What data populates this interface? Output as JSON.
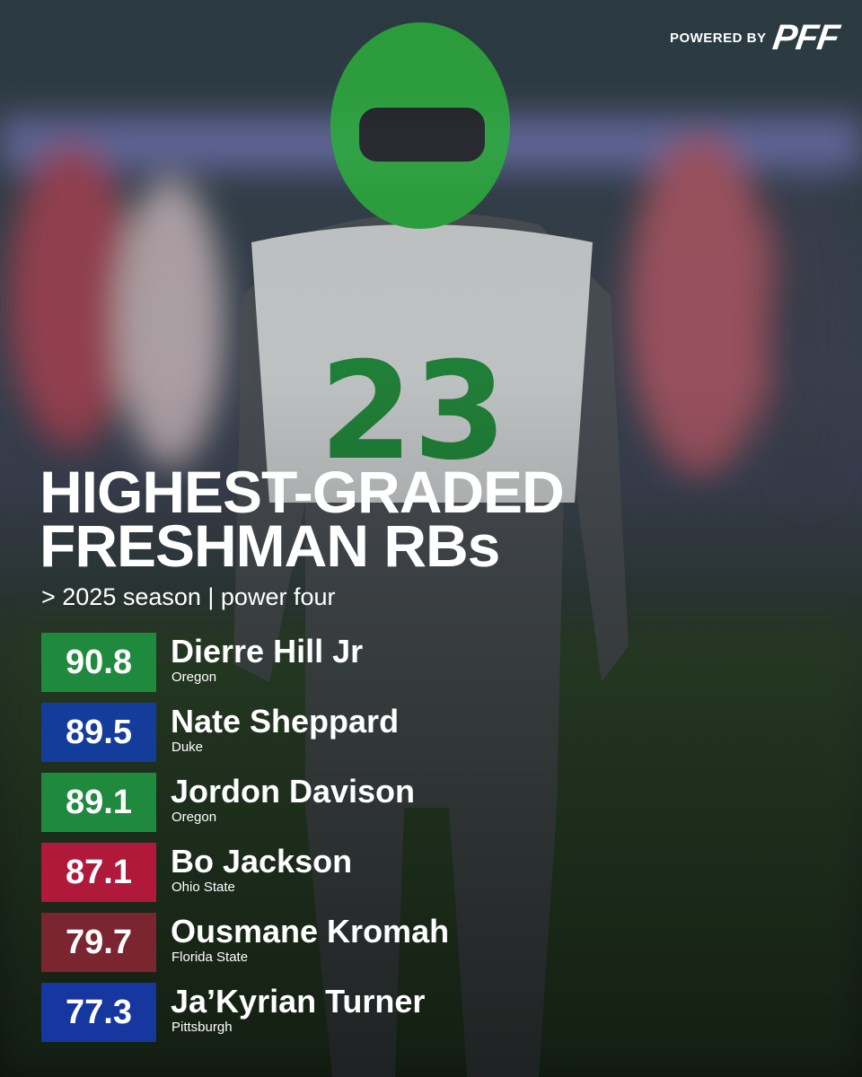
{
  "brand": {
    "prefix": "POWERED BY",
    "logo": "PFF"
  },
  "header": {
    "title_lines": [
      "HIGHEST-GRADED",
      "FRESHMAN RBs"
    ],
    "subtitle": "> 2025 season | power four"
  },
  "rows": [
    {
      "grade": "90.8",
      "name": "Dierre Hill Jr",
      "school": "Oregon",
      "color": "#1f8a3e"
    },
    {
      "grade": "89.5",
      "name": "Nate Sheppard",
      "school": "Duke",
      "color": "#143c9a"
    },
    {
      "grade": "89.1",
      "name": "Jordon Davison",
      "school": "Oregon",
      "color": "#1f8a3e"
    },
    {
      "grade": "87.1",
      "name": "Bo Jackson",
      "school": "Ohio State",
      "color": "#b0193a"
    },
    {
      "grade": "79.7",
      "name": "Ousmane Kromah",
      "school": "Florida State",
      "color": "#7a2530"
    },
    {
      "grade": "77.3",
      "name": "Ja’Kyrian Turner",
      "school": "Pittsburgh",
      "color": "#1636a0"
    }
  ]
}
